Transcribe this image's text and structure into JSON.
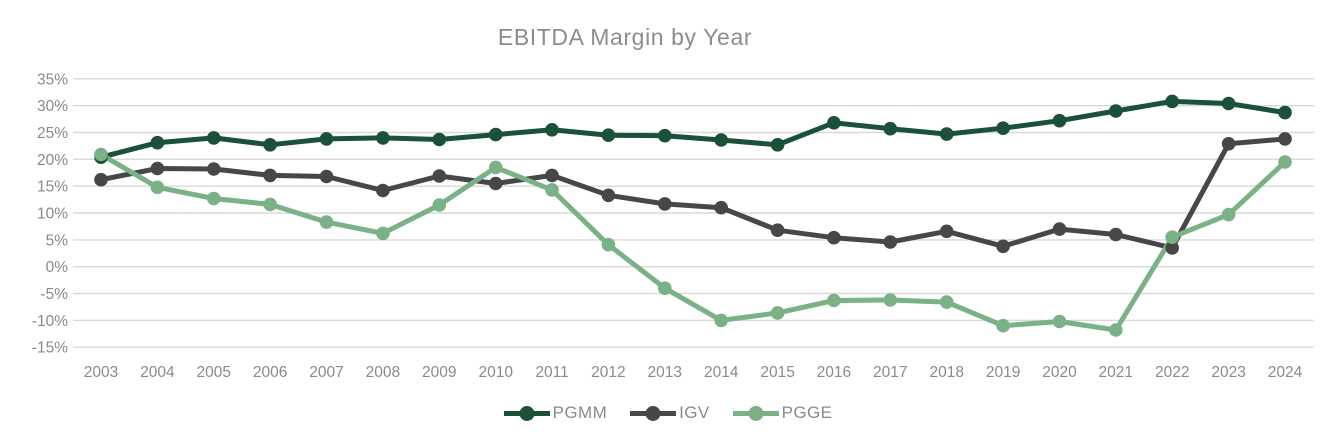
{
  "chart_data": {
    "type": "line",
    "title": "EBITDA Margin by Year",
    "xlabel": "",
    "ylabel": "",
    "x": [
      "2003",
      "2004",
      "2005",
      "2006",
      "2007",
      "2008",
      "2009",
      "2010",
      "2011",
      "2012",
      "2013",
      "2014",
      "2015",
      "2016",
      "2017",
      "2018",
      "2019",
      "2020",
      "2021",
      "2022",
      "2023",
      "2024"
    ],
    "series": [
      {
        "name": "PGMM",
        "color": "#1b5138",
        "values": [
          20.4,
          23.1,
          24.0,
          22.7,
          23.8,
          24.0,
          23.7,
          24.6,
          25.5,
          24.5,
          24.4,
          23.6,
          22.7,
          26.8,
          25.7,
          24.7,
          25.8,
          27.2,
          29.0,
          30.8,
          30.4,
          28.7
        ]
      },
      {
        "name": "IGV",
        "color": "#474747",
        "values": [
          16.2,
          18.3,
          18.2,
          17.0,
          16.8,
          14.2,
          16.9,
          15.5,
          17.0,
          13.3,
          11.7,
          11.0,
          6.8,
          5.4,
          4.6,
          6.6,
          3.8,
          7.0,
          6.0,
          3.5,
          22.9,
          23.8
        ]
      },
      {
        "name": "PGGE",
        "color": "#7ab187",
        "values": [
          20.9,
          14.8,
          12.7,
          11.6,
          8.3,
          6.2,
          11.5,
          18.5,
          14.3,
          4.1,
          -4.0,
          -10.0,
          -8.6,
          -6.3,
          -6.2,
          -6.6,
          -11.0,
          -10.2,
          -11.8,
          5.5,
          9.7,
          19.5
        ]
      }
    ],
    "y_ticks": [
      35,
      30,
      25,
      20,
      15,
      10,
      5,
      0,
      -5,
      -10,
      -15
    ],
    "y_tick_suffix": "%",
    "ylim": [
      -15,
      35
    ],
    "grid": true,
    "legend_position": "bottom"
  },
  "colors": {
    "background": "#ffffff",
    "grid": "#d9d9d9",
    "axis_text": "#8a8a8a",
    "title_text": "#8d8d8d"
  }
}
